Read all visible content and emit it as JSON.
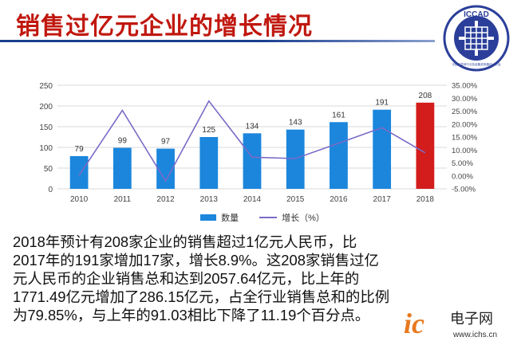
{
  "header": {
    "title": "销售过亿元企业的增长情况",
    "logo_text": "ICCAD",
    "logo_subtext": "中国半导体行业协会集成电路设计分会",
    "logo_color": "#2b3f9a"
  },
  "chart_data": {
    "type": "bar",
    "categories": [
      "2010",
      "2011",
      "2012",
      "2013",
      "2014",
      "2015",
      "2016",
      "2017",
      "2018"
    ],
    "series": [
      {
        "name": "数量",
        "type": "bar",
        "values": [
          79,
          99,
          97,
          125,
          134,
          143,
          161,
          191,
          208
        ],
        "color": "#1b86dc",
        "highlight_color": "#d31c1c",
        "highlight_index": 8
      },
      {
        "name": "增长（%）",
        "type": "line",
        "axis": "right",
        "values": [
          0.2,
          25.3,
          -2.0,
          28.9,
          7.2,
          6.7,
          12.6,
          18.6,
          8.9
        ],
        "color": "#7a6bc7"
      }
    ],
    "data_labels": [
      "79",
      "99",
      "97",
      "125",
      "134",
      "143",
      "161",
      "191",
      "208"
    ],
    "left_axis": {
      "ylim": [
        0,
        250
      ],
      "ticks": [
        "0",
        "50",
        "100",
        "150",
        "200",
        "250"
      ]
    },
    "right_axis": {
      "ylim": [
        -5,
        35
      ],
      "ticks": [
        "-5.00%",
        "0.00%",
        "5.00%",
        "10.00%",
        "15.00%",
        "20.00%",
        "25.00%",
        "30.00%",
        "35.00%"
      ]
    },
    "grid": true,
    "legend_position": "bottom"
  },
  "body_text": [
    "2018年预计有208家企业的销售超过1亿元人民币，比",
    "2017年的191家增加17家，增长8.9%。这208家销售过亿",
    "元人民币的企业销售总和达到2057.64亿元，比上年的",
    "1771.49亿元增加了286.15亿元，占全行业销售总和的比例",
    "为79.85%，与上年的91.03相比下降了11.19个百分点。"
  ],
  "watermark": {
    "brand": "ic",
    "name": "电子网",
    "url": "www.ichs.cn"
  }
}
